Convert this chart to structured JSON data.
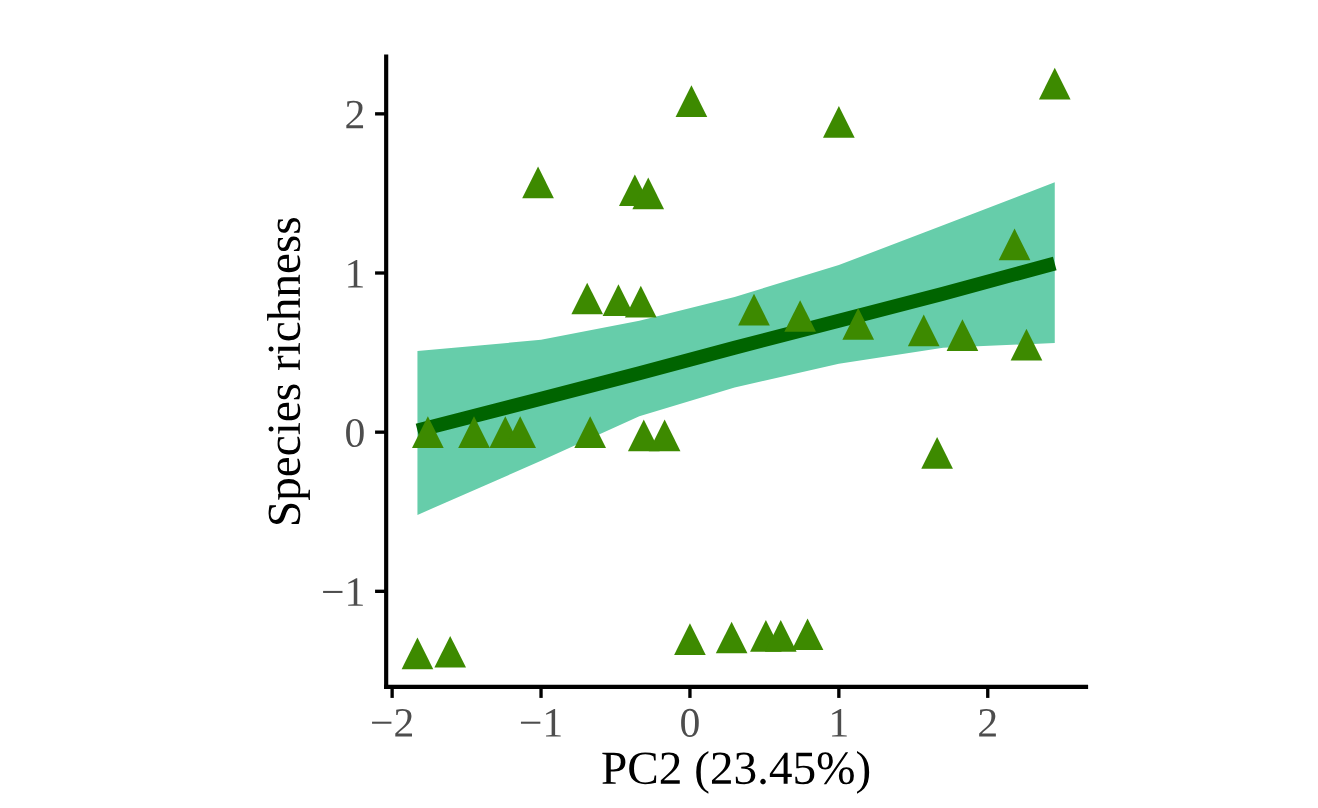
{
  "chart_data": {
    "type": "scatter",
    "xlabel": "PC2 (23.45%)",
    "ylabel": "Species richness",
    "xlim": [
      -2.04,
      2.66
    ],
    "ylim": [
      -1.6,
      2.36
    ],
    "xticks": [
      {
        "value": -2,
        "label": "−2"
      },
      {
        "value": -1,
        "label": "−1"
      },
      0,
      1,
      2
    ],
    "yticks": [
      {
        "value": -1,
        "label": "−1"
      },
      0,
      1,
      2
    ],
    "grid": false,
    "legend": false,
    "series": [
      {
        "type": "line",
        "color": "#006400",
        "x": [
          -1.83,
          -1,
          -0.34,
          0.3,
          1.0,
          1.7,
          2.45
        ],
        "values": [
          0.01,
          0.21,
          0.37,
          0.53,
          0.7,
          0.87,
          1.06
        ],
        "lower": [
          -0.52,
          -0.18,
          0.1,
          0.28,
          0.43,
          0.53,
          0.56
        ],
        "upper": [
          0.51,
          0.58,
          0.7,
          0.85,
          1.05,
          1.3,
          1.57
        ],
        "line_style": "solid",
        "marker": "none"
      },
      {
        "color": "#3d8a00",
        "marker": "triangle",
        "x": [
          0.01,
          1.0,
          2.45,
          -1.02,
          -0.37,
          -0.28,
          2.18,
          -0.69,
          -0.48,
          -0.33,
          0.43,
          0.74,
          1.13,
          1.57,
          1.83,
          2.26,
          -1.76,
          -1.45,
          -1.24,
          -1.14,
          -0.67,
          -0.31,
          -0.17,
          1.66,
          -1.83,
          -1.61,
          0.0,
          0.28,
          0.51,
          0.61,
          0.79
        ],
        "values": [
          2.08,
          1.95,
          2.19,
          1.57,
          1.52,
          1.5,
          1.18,
          0.84,
          0.83,
          0.82,
          0.77,
          0.73,
          0.68,
          0.64,
          0.61,
          0.55,
          0.0,
          0.0,
          0.0,
          0.0,
          0.0,
          -0.02,
          -0.02,
          -0.13,
          -1.39,
          -1.38,
          -1.3,
          -1.29,
          -1.28,
          -1.28,
          -1.27
        ]
      }
    ]
  }
}
